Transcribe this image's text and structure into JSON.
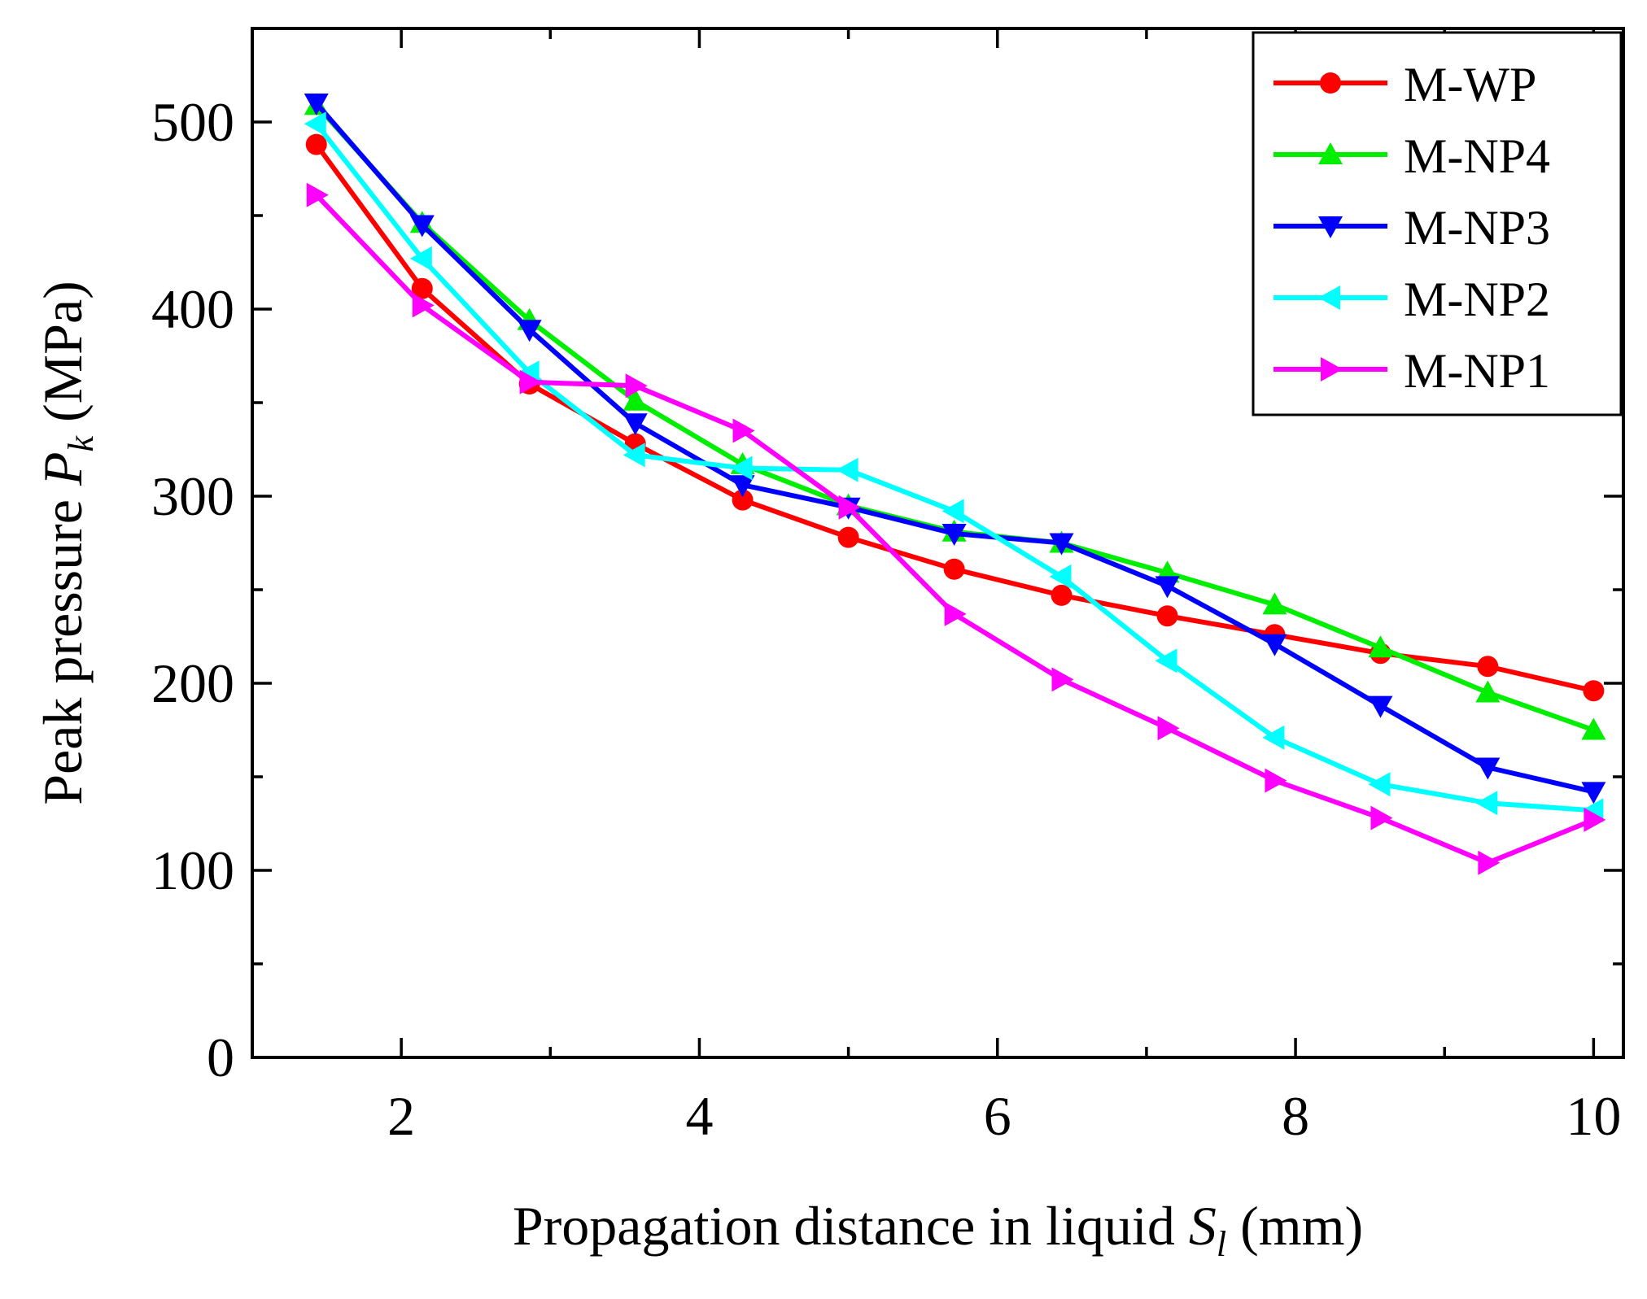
{
  "chart_data": {
    "type": "line",
    "title": "",
    "xlabel": {
      "main": "Propagation distance in liquid ",
      "symbol": "S",
      "subscript": "l",
      "unit": " (mm)"
    },
    "ylabel": {
      "main": "Peak pressure ",
      "symbol": "P",
      "subscript": "k",
      "unit": " (MPa)"
    },
    "xlim": [
      1,
      10.2
    ],
    "ylim": [
      0,
      550
    ],
    "xticks": [
      2,
      4,
      6,
      8,
      10
    ],
    "xtick_labels": [
      "2",
      "4",
      "6",
      "8",
      "10"
    ],
    "yticks": [
      0,
      100,
      200,
      300,
      400,
      500
    ],
    "ytick_labels": [
      "0",
      "100",
      "200",
      "300",
      "400",
      "500"
    ],
    "x_minor_ticks": [
      3,
      5,
      7,
      9
    ],
    "y_minor_ticks": [
      50,
      150,
      250,
      350,
      450
    ],
    "grid": false,
    "legend_position": "top-right",
    "x": [
      1.43,
      2.14,
      2.86,
      3.57,
      4.29,
      5.0,
      5.71,
      6.43,
      7.14,
      7.86,
      8.57,
      9.29,
      10.0
    ],
    "series": [
      {
        "name": "M-WP",
        "color": "#ff0000",
        "marker": "circle",
        "values": [
          488,
          411,
          360,
          328,
          298,
          278,
          261,
          247,
          236,
          226,
          216,
          209,
          196
        ]
      },
      {
        "name": "M-NP4",
        "color": "#00ee00",
        "marker": "triangle-up",
        "values": [
          509,
          446,
          394,
          351,
          317,
          295,
          281,
          275,
          259,
          242,
          219,
          195,
          175
        ]
      },
      {
        "name": "M-NP3",
        "color": "#0000ff",
        "marker": "triangle-down",
        "values": [
          510,
          445,
          389,
          339,
          306,
          294,
          280,
          275,
          252,
          221,
          188,
          155,
          142
        ]
      },
      {
        "name": "M-NP2",
        "color": "#00ffff",
        "marker": "triangle-left",
        "values": [
          499,
          427,
          366,
          322,
          315,
          314,
          292,
          257,
          212,
          171,
          146,
          136,
          132
        ]
      },
      {
        "name": "M-NP1",
        "color": "#ff00ff",
        "marker": "triangle-right",
        "values": [
          461,
          402,
          361,
          359,
          335,
          294,
          237,
          202,
          176,
          148,
          128,
          104,
          127
        ]
      }
    ]
  }
}
